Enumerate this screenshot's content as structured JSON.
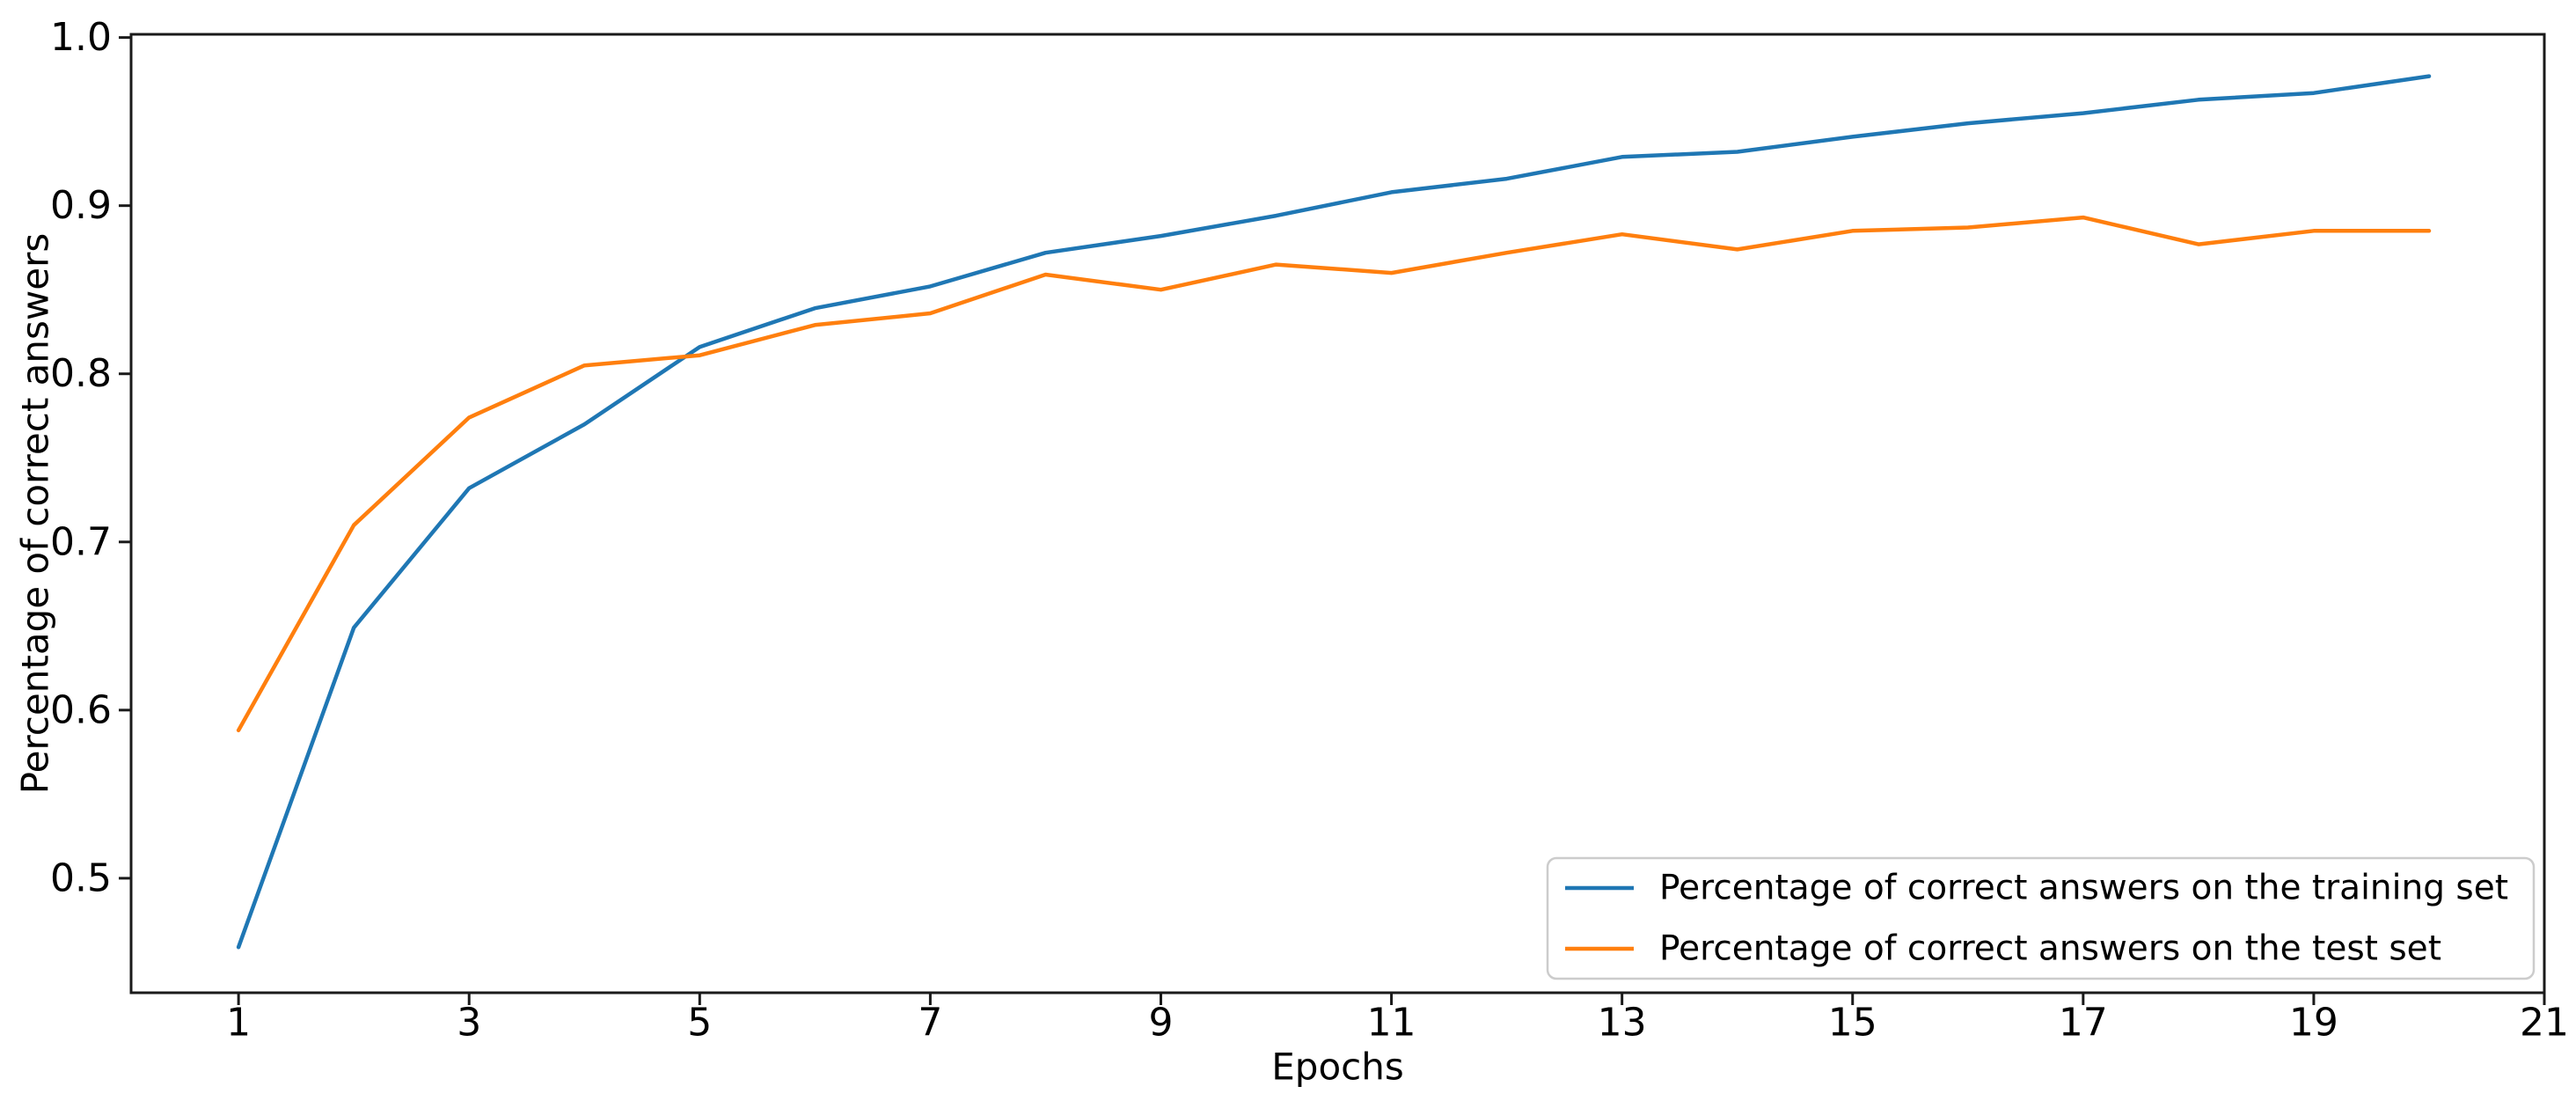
{
  "figure": {
    "background": "#ffffff",
    "axis_color": "#1a1a1a"
  },
  "chart_data": {
    "type": "line",
    "title": "",
    "xlabel": "Epochs",
    "ylabel": "Percentage of correct answers",
    "x": [
      1,
      2,
      3,
      4,
      5,
      6,
      7,
      8,
      9,
      10,
      11,
      12,
      13,
      14,
      15,
      16,
      17,
      18,
      19,
      20
    ],
    "series": [
      {
        "name": "Percentage of correct answers on the training set",
        "color": "#1f77b4",
        "values": [
          0.459,
          0.649,
          0.732,
          0.77,
          0.816,
          0.839,
          0.852,
          0.872,
          0.882,
          0.894,
          0.908,
          0.916,
          0.929,
          0.932,
          0.941,
          0.949,
          0.955,
          0.963,
          0.967,
          0.977
        ]
      },
      {
        "name": "Percentage of correct answers on the test set",
        "color": "#ff7f0e",
        "values": [
          0.588,
          0.71,
          0.774,
          0.805,
          0.811,
          0.829,
          0.836,
          0.859,
          0.85,
          0.865,
          0.86,
          0.872,
          0.883,
          0.874,
          0.885,
          0.887,
          0.893,
          0.877,
          0.885,
          0.885
        ]
      }
    ],
    "x_ticks": [
      1,
      3,
      5,
      7,
      9,
      11,
      13,
      15,
      17,
      19,
      21
    ],
    "y_ticks": [
      1.0,
      0.9,
      0.8,
      0.7,
      0.6,
      0.5
    ],
    "xlim": [
      0.068,
      21.0
    ],
    "ylim": [
      0.4319,
      1.0019
    ],
    "grid": false,
    "legend_position": "lower right"
  }
}
